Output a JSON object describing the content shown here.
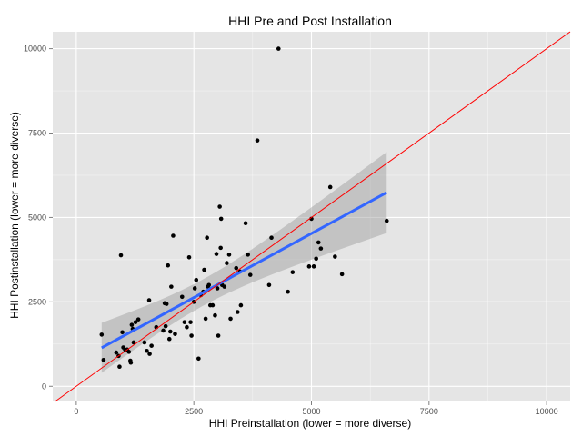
{
  "chart_data": {
    "type": "scatter",
    "title": "HHI Pre and Post Installation",
    "xlabel": "HHI Preinstallation (lower = more diverse)",
    "ylabel": "HHI Postinstallation (lower = more diverse)",
    "xlim": [
      -500,
      10500
    ],
    "ylim": [
      -450,
      10500
    ],
    "xticks": [
      0,
      2500,
      5000,
      7500,
      10000
    ],
    "yticks": [
      0,
      2500,
      5000,
      7500,
      10000
    ],
    "grid": true,
    "legend": "none",
    "points": [
      [
        540,
        1530
      ],
      [
        580,
        780
      ],
      [
        850,
        1000
      ],
      [
        900,
        900
      ],
      [
        920,
        580
      ],
      [
        950,
        3880
      ],
      [
        980,
        1600
      ],
      [
        1000,
        1150
      ],
      [
        1040,
        1080
      ],
      [
        1080,
        1090
      ],
      [
        1120,
        1020
      ],
      [
        1150,
        760
      ],
      [
        1160,
        700
      ],
      [
        1180,
        1820
      ],
      [
        1200,
        1700
      ],
      [
        1220,
        1300
      ],
      [
        1260,
        1900
      ],
      [
        1320,
        1980
      ],
      [
        1450,
        1300
      ],
      [
        1500,
        1050
      ],
      [
        1550,
        2550
      ],
      [
        1560,
        960
      ],
      [
        1600,
        1200
      ],
      [
        1700,
        1750
      ],
      [
        1850,
        1650
      ],
      [
        1880,
        2460
      ],
      [
        1900,
        1780
      ],
      [
        1920,
        2440
      ],
      [
        1950,
        3580
      ],
      [
        1980,
        1400
      ],
      [
        2000,
        1620
      ],
      [
        2020,
        2950
      ],
      [
        2060,
        4460
      ],
      [
        2100,
        1550
      ],
      [
        2250,
        2650
      ],
      [
        2300,
        1900
      ],
      [
        2350,
        1750
      ],
      [
        2400,
        3820
      ],
      [
        2430,
        1900
      ],
      [
        2450,
        1500
      ],
      [
        2500,
        2500
      ],
      [
        2520,
        2900
      ],
      [
        2550,
        3150
      ],
      [
        2600,
        820
      ],
      [
        2650,
        2700
      ],
      [
        2700,
        2800
      ],
      [
        2720,
        3450
      ],
      [
        2750,
        2000
      ],
      [
        2780,
        4400
      ],
      [
        2800,
        2950
      ],
      [
        2820,
        3000
      ],
      [
        2850,
        2400
      ],
      [
        2900,
        2400
      ],
      [
        2950,
        2100
      ],
      [
        2980,
        3920
      ],
      [
        3000,
        2900
      ],
      [
        3020,
        1500
      ],
      [
        3050,
        5320
      ],
      [
        3070,
        4100
      ],
      [
        3080,
        4960
      ],
      [
        3100,
        3000
      ],
      [
        3150,
        2950
      ],
      [
        3200,
        3650
      ],
      [
        3250,
        3900
      ],
      [
        3280,
        2000
      ],
      [
        3400,
        3500
      ],
      [
        3430,
        2200
      ],
      [
        3480,
        3400
      ],
      [
        3500,
        2400
      ],
      [
        3600,
        4830
      ],
      [
        3650,
        3900
      ],
      [
        3700,
        3300
      ],
      [
        3850,
        7280
      ],
      [
        4100,
        3000
      ],
      [
        4150,
        4400
      ],
      [
        4300,
        10000
      ],
      [
        4500,
        2800
      ],
      [
        4600,
        3380
      ],
      [
        4950,
        3550
      ],
      [
        5000,
        4960
      ],
      [
        5050,
        3550
      ],
      [
        5100,
        3780
      ],
      [
        5150,
        4260
      ],
      [
        5200,
        4080
      ],
      [
        5400,
        5900
      ],
      [
        5500,
        3840
      ],
      [
        5650,
        3320
      ],
      [
        6600,
        4900
      ]
    ],
    "regression": {
      "x": [
        540,
        6600
      ],
      "y": [
        1140,
        5740
      ]
    },
    "reference_line": {
      "slope": 1,
      "intercept": 0
    },
    "colors": {
      "panel": "#e5e5e5",
      "grid": "#ffffff",
      "points": "#000000",
      "regression": "#3366ff",
      "ribbon": "#999999",
      "reference": "#ff0000"
    }
  }
}
